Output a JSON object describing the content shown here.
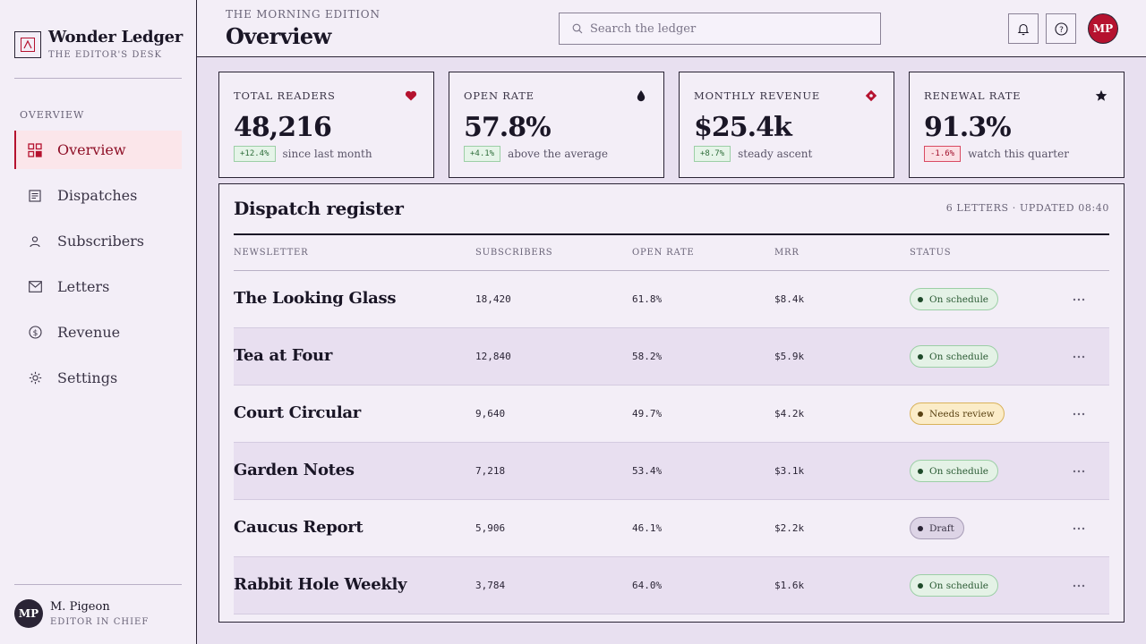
{
  "brand": {
    "title": "Wonder Ledger",
    "subtitle": "THE EDITOR'S DESK"
  },
  "sidebar": {
    "section_label": "OVERVIEW",
    "items": [
      {
        "label": "Overview",
        "icon": "grid-icon",
        "active": true
      },
      {
        "label": "Dispatches",
        "icon": "document-icon"
      },
      {
        "label": "Subscribers",
        "icon": "person-icon"
      },
      {
        "label": "Letters",
        "icon": "mail-icon"
      },
      {
        "label": "Revenue",
        "icon": "dollar-icon"
      },
      {
        "label": "Settings",
        "icon": "gear-icon"
      }
    ]
  },
  "user": {
    "initials": "MP",
    "name": "M. Pigeon",
    "role": "EDITOR IN CHIEF"
  },
  "header": {
    "eyebrow": "THE MORNING EDITION",
    "title": "Overview",
    "search_placeholder": "Search the ledger",
    "avatar_initials": "MP"
  },
  "kpis": [
    {
      "label": "TOTAL READERS",
      "value": "48,216",
      "delta": "+12.4%",
      "trend": "up",
      "note": "since last month",
      "icon": "heart-icon",
      "icon_color": "#b5122f"
    },
    {
      "label": "OPEN RATE",
      "value": "57.8%",
      "delta": "+4.1%",
      "trend": "up",
      "note": "above the average",
      "icon": "drop-icon",
      "icon_color": "#1a1626"
    },
    {
      "label": "MONTHLY REVENUE",
      "value": "$25.4k",
      "delta": "+8.7%",
      "trend": "up",
      "note": "steady ascent",
      "icon": "diamond-icon",
      "icon_color": "#b5122f"
    },
    {
      "label": "RENEWAL RATE",
      "value": "91.3%",
      "delta": "-1.6%",
      "trend": "down",
      "note": "watch this quarter",
      "icon": "star-icon",
      "icon_color": "#1a1626"
    }
  ],
  "register": {
    "title": "Dispatch register",
    "meta": "6 LETTERS · UPDATED 08:40",
    "columns": {
      "newsletter": "NEWSLETTER",
      "subscribers": "SUBSCRIBERS",
      "open_rate": "OPEN RATE",
      "mrr": "MRR",
      "status": "STATUS"
    },
    "rows": [
      {
        "name": "The Looking Glass",
        "subscribers": "18,420",
        "open_rate": "61.8%",
        "mrr": "$8.4k",
        "status": "On schedule",
        "status_type": "ok"
      },
      {
        "name": "Tea at Four",
        "subscribers": "12,840",
        "open_rate": "58.2%",
        "mrr": "$5.9k",
        "status": "On schedule",
        "status_type": "ok"
      },
      {
        "name": "Court Circular",
        "subscribers": "9,640",
        "open_rate": "49.7%",
        "mrr": "$4.2k",
        "status": "Needs review",
        "status_type": "review"
      },
      {
        "name": "Garden Notes",
        "subscribers": "7,218",
        "open_rate": "53.4%",
        "mrr": "$3.1k",
        "status": "On schedule",
        "status_type": "ok"
      },
      {
        "name": "Caucus Report",
        "subscribers": "5,906",
        "open_rate": "46.1%",
        "mrr": "$2.2k",
        "status": "Draft",
        "status_type": "draft"
      },
      {
        "name": "Rabbit Hole Weekly",
        "subscribers": "3,784",
        "open_rate": "64.0%",
        "mrr": "$1.6k",
        "status": "On schedule",
        "status_type": "ok"
      }
    ]
  }
}
